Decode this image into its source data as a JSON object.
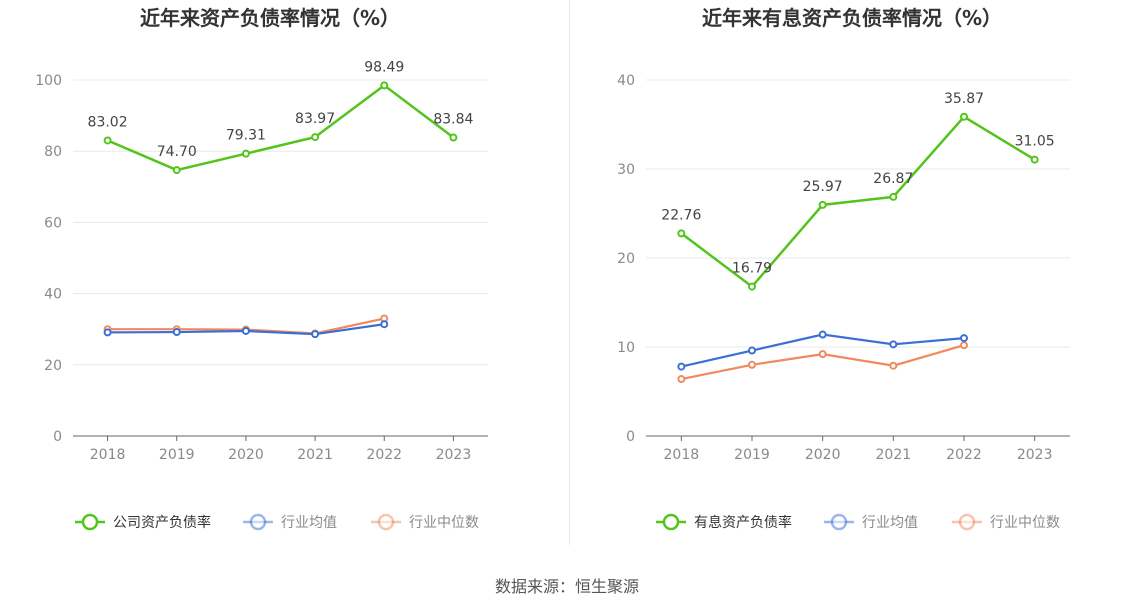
{
  "source": "数据来源：恒生聚源",
  "chart_data": [
    {
      "type": "line",
      "title": "近年来资产负债率情况（%）",
      "categories": [
        "2018",
        "2019",
        "2020",
        "2021",
        "2022",
        "2023"
      ],
      "ylim": [
        0,
        100
      ],
      "yticks": [
        0,
        20,
        40,
        60,
        80,
        100
      ],
      "grid": true,
      "legend_position": "bottom",
      "series": [
        {
          "name": "公司资产负债率",
          "color": "#52c41a",
          "values": [
            83.02,
            74.7,
            79.31,
            83.97,
            98.49,
            83.84
          ],
          "labels": [
            "83.02",
            "74.70",
            "79.31",
            "83.97",
            "98.49",
            "83.84"
          ]
        },
        {
          "name": "行业均值",
          "color": "#3b6fd6",
          "values": [
            29.1,
            29.2,
            29.5,
            28.6,
            31.4,
            null
          ]
        },
        {
          "name": "行业中位数",
          "color": "#f08a5d",
          "values": [
            30.0,
            30.0,
            29.9,
            28.8,
            33.0,
            null
          ]
        }
      ]
    },
    {
      "type": "line",
      "title": "近年来有息资产负债率情况（%）",
      "categories": [
        "2018",
        "2019",
        "2020",
        "2021",
        "2022",
        "2023"
      ],
      "ylim": [
        0,
        40
      ],
      "yticks": [
        0,
        10,
        20,
        30,
        40
      ],
      "grid": true,
      "legend_position": "bottom",
      "series": [
        {
          "name": "有息资产负债率",
          "color": "#52c41a",
          "values": [
            22.76,
            16.79,
            25.97,
            26.87,
            35.87,
            31.05
          ],
          "labels": [
            "22.76",
            "16.79",
            "25.97",
            "26.87",
            "35.87",
            "31.05"
          ]
        },
        {
          "name": "行业均值",
          "color": "#3b6fd6",
          "values": [
            7.8,
            9.6,
            11.4,
            10.3,
            11.0,
            null
          ]
        },
        {
          "name": "行业中位数",
          "color": "#f08a5d",
          "values": [
            6.4,
            8.0,
            9.2,
            7.9,
            10.2,
            null
          ]
        }
      ]
    }
  ]
}
